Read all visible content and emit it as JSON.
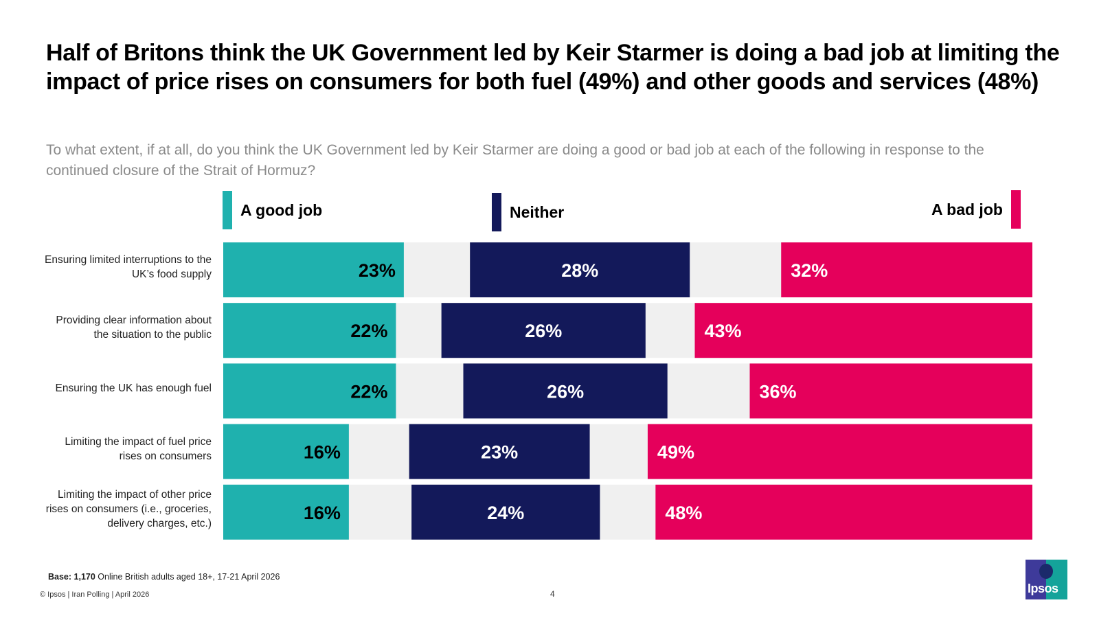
{
  "title": "Half of Britons think the UK Government led by Keir Starmer is doing a bad job at limiting the impact of price rises on consumers for both fuel (49%) and other goods and services (48%)",
  "subtitle": "To what extent, if at all, do you think the UK Government led by Keir Starmer are doing a good or bad job at each of the following in response to the continued closure of the Strait of Hormuz?",
  "colors": {
    "good": "#1fb1ae",
    "neither": "#13195a",
    "bad": "#e5005b",
    "gap": "#f0f0f0"
  },
  "chart_data": {
    "type": "bar",
    "orientation": "horizontal",
    "layout": "diverging-columns",
    "title": "Half of Britons think the UK Government led by Keir Starmer is doing a bad job at limiting the impact of price rises on consumers for both fuel (49%) and other goods and services (48%)",
    "xlabel": "",
    "ylabel": "",
    "unit": "%",
    "xlim": [
      0,
      100
    ],
    "legend": "top",
    "categories": [
      "Ensuring limited interruptions to the UK’s food supply",
      "Providing clear information about the situation to the public",
      "Ensuring the UK has enough fuel",
      "Limiting the impact of fuel price rises on consumers",
      "Limiting the impact of other price rises on consumers (i.e., groceries, delivery charges, etc.)"
    ],
    "series": [
      {
        "name": "A good job",
        "values": [
          23,
          22,
          22,
          16,
          16
        ]
      },
      {
        "name": "Neither",
        "values": [
          28,
          26,
          26,
          23,
          24
        ]
      },
      {
        "name": "A bad job",
        "values": [
          32,
          43,
          36,
          49,
          48
        ]
      }
    ],
    "data_labels": [
      [
        "23%",
        "28%",
        "32%"
      ],
      [
        "22%",
        "26%",
        "43%"
      ],
      [
        "22%",
        "26%",
        "36%"
      ],
      [
        "16%",
        "23%",
        "49%"
      ],
      [
        "16%",
        "24%",
        "48%"
      ]
    ]
  },
  "legend": {
    "good": "A good job",
    "neither": "Neither",
    "bad": "A bad job"
  },
  "footer": {
    "base_bold": "Base: 1,170",
    "base_rest": " Online British adults aged 18+, 17-21 April 2026",
    "copyright": "© Ipsos | Iran Polling | April 2026",
    "page_number": "4",
    "logo_text": "Ipsos"
  }
}
